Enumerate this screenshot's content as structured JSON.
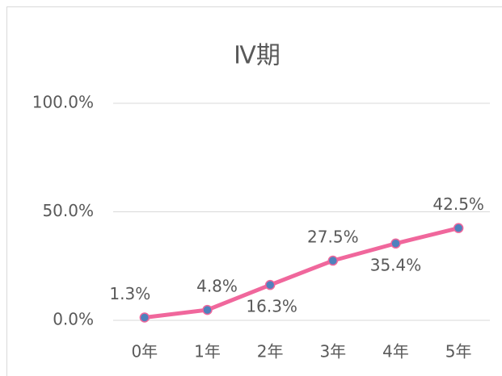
{
  "chart_data": {
    "type": "line",
    "title": "Ⅳ期",
    "categories": [
      "0年",
      "1年",
      "2年",
      "3年",
      "4年",
      "5年"
    ],
    "series": [
      {
        "name": null,
        "color": "#f0679c",
        "marker_color": "#4f81bd",
        "values": [
          1.3,
          4.8,
          16.3,
          27.5,
          35.4,
          42.5
        ],
        "value_labels": [
          "1.3%",
          "4.8%",
          "16.3%",
          "27.5%",
          "35.4%",
          "42.5%"
        ]
      }
    ],
    "ylim": [
      0,
      100
    ],
    "yticks": [
      {
        "value": 0,
        "label": "0.0%"
      },
      {
        "value": 50,
        "label": "50.0%"
      },
      {
        "value": 100,
        "label": "100.0%"
      }
    ],
    "grid": true
  }
}
